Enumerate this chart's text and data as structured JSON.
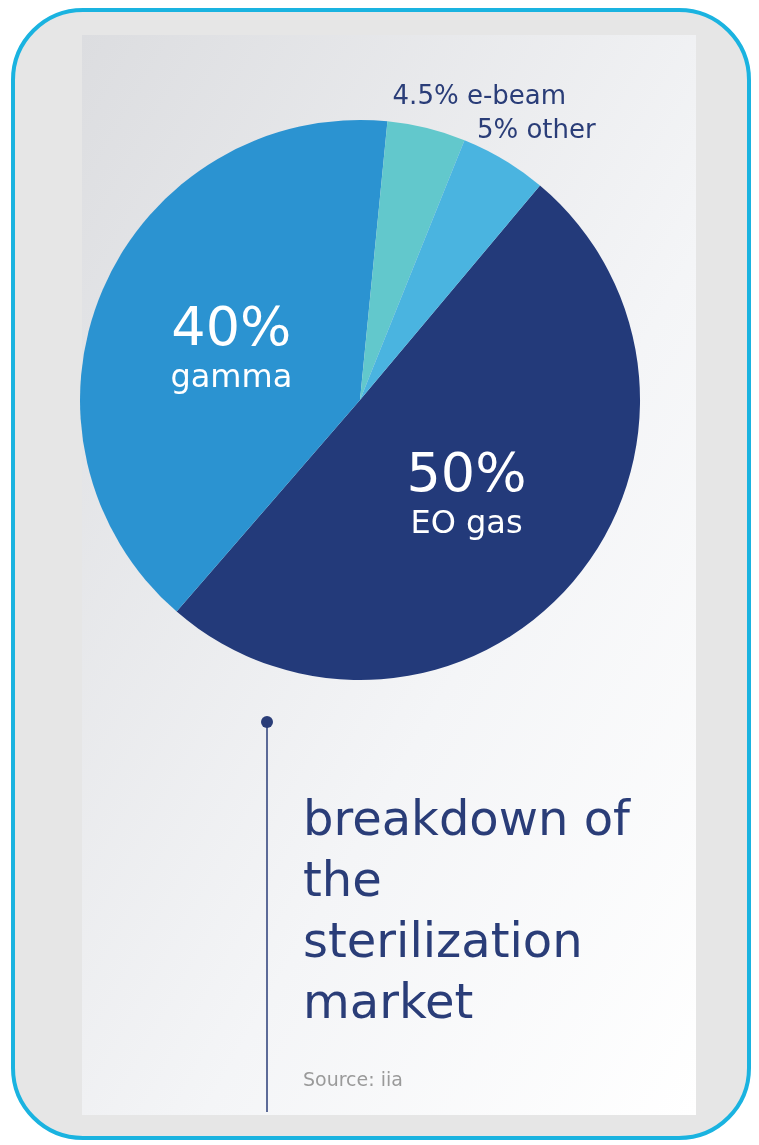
{
  "chart_data": {
    "type": "pie",
    "title": "breakdown of the sterilization market",
    "categories": [
      "EO gas",
      "gamma",
      "e-beam",
      "other"
    ],
    "values": [
      50,
      40,
      4.5,
      5
    ],
    "value_labels": [
      "50%",
      "40%",
      "4.5%",
      "5%"
    ],
    "colors": [
      "#233a7a",
      "#2b93d1",
      "#62c8cc",
      "#4ab4e0"
    ],
    "annotations": [
      "Source: iia"
    ]
  }
}
